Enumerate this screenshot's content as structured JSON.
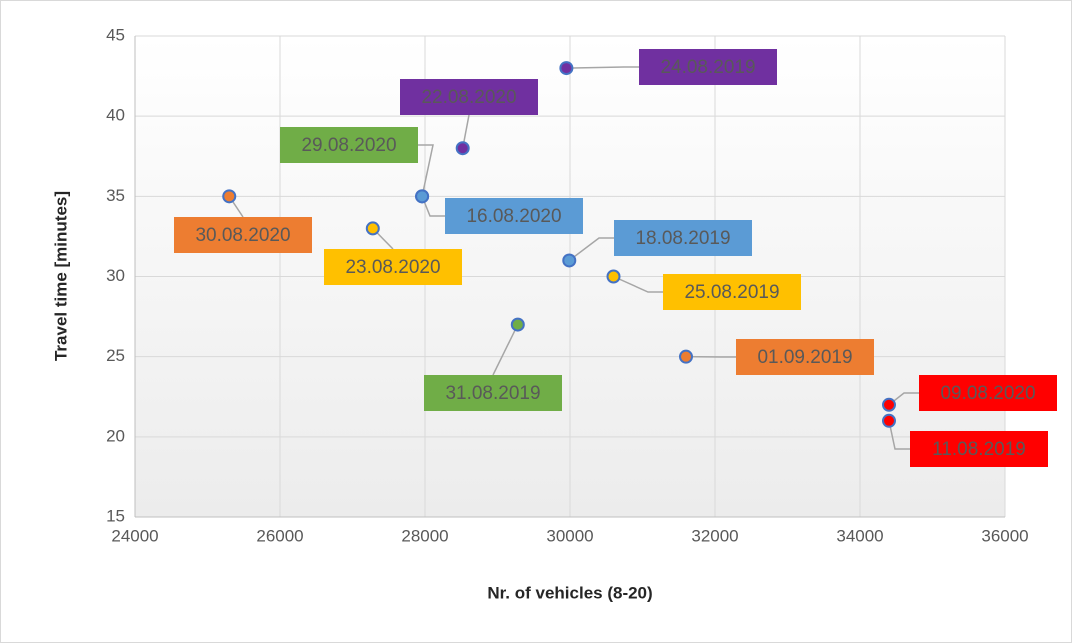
{
  "chart_data": {
    "type": "scatter",
    "x_label": "Nr. of vehicles (8-20)",
    "y_label": "Travel time [minutes]",
    "x": [
      29950,
      28520,
      27960,
      27960,
      25300,
      27280,
      29990,
      30600,
      29280,
      31600,
      34400,
      34400
    ],
    "values": [
      43,
      38,
      35,
      35,
      35,
      33,
      31,
      30,
      27,
      25,
      22,
      21
    ],
    "point_labels": [
      "24.08.2019",
      "22.08.2020",
      "29.08.2020",
      "16.08.2020",
      "30.08.2020",
      "23.08.2020",
      "18.08.2019",
      "25.08.2019",
      "31.08.2019",
      "01.09.2019",
      "09.08.2020",
      "11.08.2019"
    ],
    "point_colors": [
      "#7030a0",
      "#7030a0",
      "#70ad47",
      "#5b9bd5",
      "#ed7d31",
      "#ffc000",
      "#5b9bd5",
      "#ffc000",
      "#70ad47",
      "#ed7d31",
      "#ff0000",
      "#ff0000"
    ],
    "xlim": [
      24000,
      36000
    ],
    "xticks": [
      24000,
      26000,
      28000,
      30000,
      32000,
      34000,
      36000
    ],
    "ylim": [
      15,
      45
    ],
    "yticks": [
      15,
      20,
      25,
      30,
      35,
      40,
      45
    ],
    "grid": true
  }
}
